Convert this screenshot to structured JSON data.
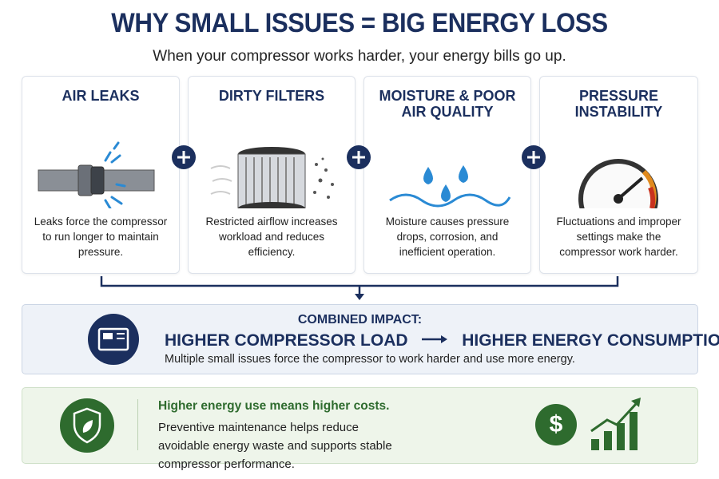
{
  "header": {
    "title": "WHY SMALL ISSUES = BIG ENERGY LOSS",
    "subtitle": "When your compressor works harder, your energy bills go up."
  },
  "cards": [
    {
      "title": "AIR LEAKS",
      "description": "Leaks force the compressor to run longer to maintain pressure."
    },
    {
      "title": "DIRTY FILTERS",
      "description": "Restricted airflow increases workload and reduces efficiency."
    },
    {
      "title": "MOISTURE & POOR AIR QUALITY",
      "description": "Moisture causes pressure drops, corrosion, and inefficient operation."
    },
    {
      "title": "PRESSURE INSTABILITY",
      "description": "Fluctuations and improper settings make the compressor work harder."
    }
  ],
  "impact": {
    "label": "COMBINED IMPACT:",
    "cause": "HIGHER COMPRESSOR LOAD",
    "effect": "HIGHER ENERGY CONSUMPTION",
    "description": "Multiple small issues force the compressor to work harder and use more energy."
  },
  "cost": {
    "title": "Higher energy use means higher costs.",
    "description": "Preventive maintenance helps reduce avoidable energy waste and supports stable compressor performance.",
    "symbol": "$"
  }
}
